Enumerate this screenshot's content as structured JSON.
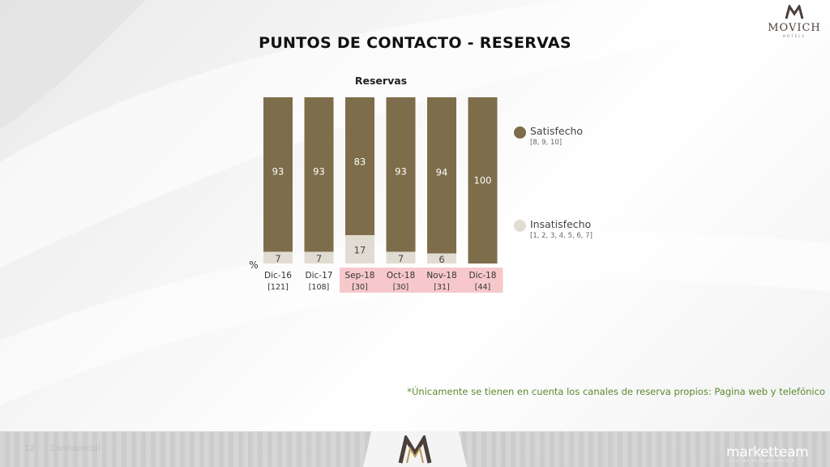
{
  "brand": {
    "name": "MOVICH",
    "sub": "HOTELS",
    "colors": {
      "satisfecho": "#7e6d4a",
      "insatisfecho": "#e1dcd2",
      "highlight": "#f6c8cc",
      "footnote": "#5a8a2e"
    }
  },
  "page": {
    "title": "PUNTOS DE CONTACTO - RESERVAS",
    "footnote": "*Únicamente se tienen en cuenta los canales de reserva propios: Pagina web y telefónico"
  },
  "footer": {
    "page_number": "12",
    "confidential": "Confidencial",
    "company": "marketteam",
    "company_sub": "CULTURA DE CONOCIMIENTO"
  },
  "chart_data": {
    "type": "bar",
    "stacked": true,
    "percent_stacked": true,
    "title": "Reservas",
    "ylabel": "%",
    "ylim": [
      0,
      100
    ],
    "categories": [
      "Dic-16",
      "Dic-17",
      "Sep-18",
      "Oct-18",
      "Nov-18",
      "Dic-18"
    ],
    "base_sizes": [
      "[121]",
      "[108]",
      "[30]",
      "[30]",
      "[31]",
      "[44]"
    ],
    "highlighted_categories": [
      "Sep-18",
      "Oct-18",
      "Nov-18",
      "Dic-18"
    ],
    "series": [
      {
        "name": "Insatisfecho",
        "range": "[1, 2, 3, 4, 5, 6, 7]",
        "color": "#e1dcd2",
        "values": [
          7,
          7,
          17,
          7,
          6,
          null
        ]
      },
      {
        "name": "Satisfecho",
        "range": "[8, 9, 10]",
        "color": "#7e6d4a",
        "values": [
          93,
          93,
          83,
          93,
          94,
          100
        ]
      }
    ],
    "legend": "right"
  }
}
